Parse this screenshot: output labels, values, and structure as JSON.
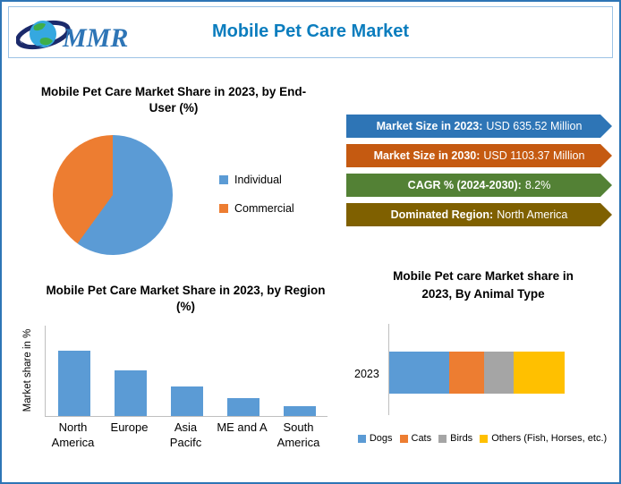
{
  "header": {
    "title": "Mobile Pet Care Market",
    "logo_text": "MMR"
  },
  "banners": [
    {
      "label": "Market Size in 2023:",
      "value": "USD 635.52 Million",
      "color": "#2e75b6"
    },
    {
      "label": "Market Size in 2030:",
      "value": "USD 1103.37 Million",
      "color": "#c55a11"
    },
    {
      "label": "CAGR % (2024-2030):",
      "value": "8.2%",
      "color": "#538135"
    },
    {
      "label": "Dominated Region:",
      "value": "North America",
      "color": "#7f6000"
    }
  ],
  "chart_data": [
    {
      "type": "pie",
      "title": "Mobile Pet Care Market Share in 2023, by End-User (%)",
      "labels": [
        "Individual",
        "Commercial"
      ],
      "values": [
        60,
        40
      ],
      "colors": [
        "#5b9bd5",
        "#ed7d31"
      ],
      "legend_position": "right"
    },
    {
      "type": "bar",
      "title": "Mobile Pet Care Market Share in 2023, by Region (%)",
      "ylabel": "Market share in %",
      "categories": [
        "North America",
        "Europe",
        "Asia Pacifc",
        "ME and A",
        "South America"
      ],
      "values": [
        40,
        28,
        18,
        11,
        6
      ],
      "ylim": [
        0,
        55
      ],
      "color": "#5b9bd5"
    },
    {
      "type": "stacked-bar-horizontal",
      "title": "Mobile Pet care Market share in 2023, By Animal Type",
      "category": "2023",
      "series": [
        {
          "name": "Dogs",
          "value": 34,
          "color": "#5b9bd5"
        },
        {
          "name": "Cats",
          "value": 20,
          "color": "#ed7d31"
        },
        {
          "name": "Birds",
          "value": 17,
          "color": "#a5a5a5"
        },
        {
          "name": "Others (Fish, Horses, etc.)",
          "value": 29,
          "color": "#ffc000"
        }
      ],
      "legend_position": "bottom"
    }
  ]
}
